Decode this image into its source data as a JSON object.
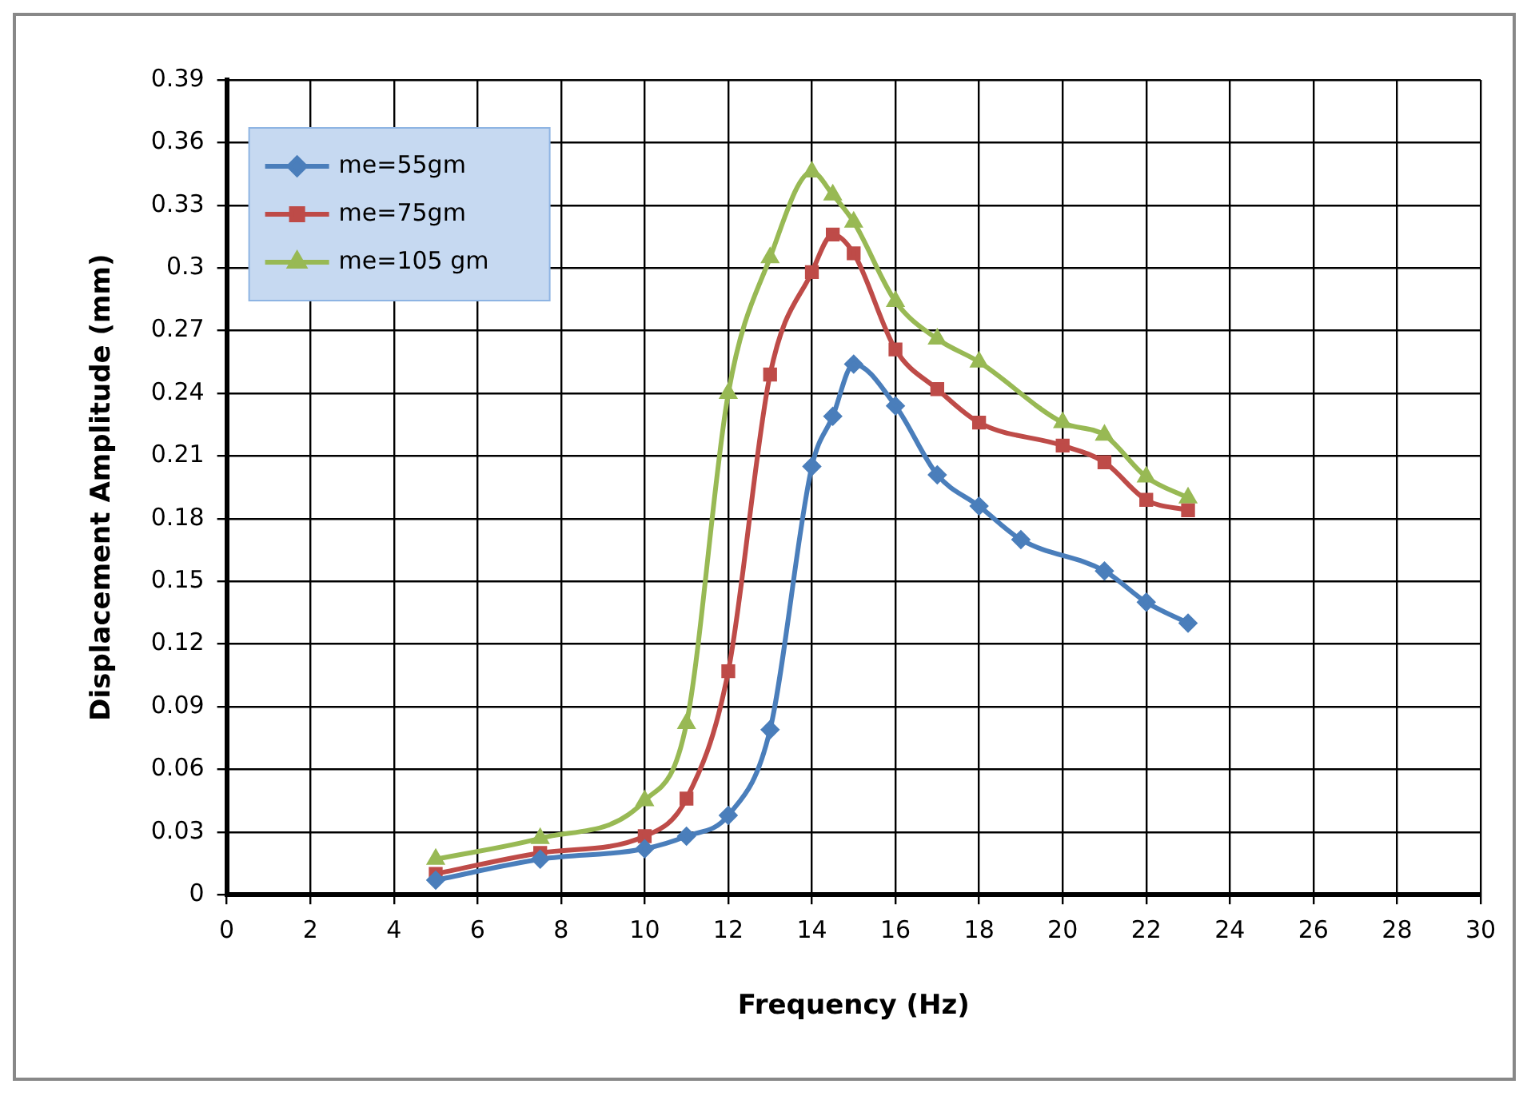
{
  "chart_data": {
    "type": "line",
    "xlabel": "Frequency (Hz)",
    "ylabel": "Displacement Amplitude (mm)",
    "xlim": [
      0,
      30
    ],
    "xticks": [
      0,
      2,
      4,
      6,
      8,
      10,
      12,
      14,
      16,
      18,
      20,
      22,
      24,
      26,
      28,
      30
    ],
    "ylim": [
      0,
      0.39
    ],
    "yticks": [
      0,
      0.03,
      0.06,
      0.09,
      0.12,
      0.15,
      0.18,
      0.21,
      0.24,
      0.27,
      0.3,
      0.33,
      0.36,
      0.39
    ],
    "grid": true,
    "legend": "top left",
    "series": [
      {
        "name": "me=55gm",
        "color": "#4a7ebb",
        "marker": "diamond",
        "x": [
          5,
          7.5,
          10,
          11,
          12,
          13,
          14,
          14.5,
          15,
          16,
          17,
          18,
          19,
          21,
          22,
          23
        ],
        "values": [
          0.007,
          0.017,
          0.022,
          0.028,
          0.038,
          0.079,
          0.205,
          0.229,
          0.254,
          0.234,
          0.201,
          0.186,
          0.17,
          0.155,
          0.14,
          0.13
        ]
      },
      {
        "name": "me=75gm",
        "color": "#be4b48",
        "marker": "square",
        "x": [
          5,
          7.5,
          10,
          11,
          12,
          13,
          14,
          14.5,
          15,
          16,
          17,
          18,
          20,
          21,
          22,
          23
        ],
        "values": [
          0.01,
          0.02,
          0.028,
          0.046,
          0.107,
          0.249,
          0.298,
          0.316,
          0.307,
          0.261,
          0.242,
          0.226,
          0.215,
          0.207,
          0.189,
          0.184
        ]
      },
      {
        "name": "me=105 gm",
        "color": "#98b954",
        "marker": "triangle",
        "x": [
          5,
          7.5,
          10,
          11,
          12,
          13,
          14,
          14.5,
          15,
          16,
          17,
          18,
          20,
          21,
          22,
          23
        ],
        "values": [
          0.017,
          0.027,
          0.045,
          0.082,
          0.24,
          0.305,
          0.346,
          0.335,
          0.322,
          0.284,
          0.266,
          0.255,
          0.226,
          0.22,
          0.2,
          0.19
        ]
      }
    ]
  }
}
